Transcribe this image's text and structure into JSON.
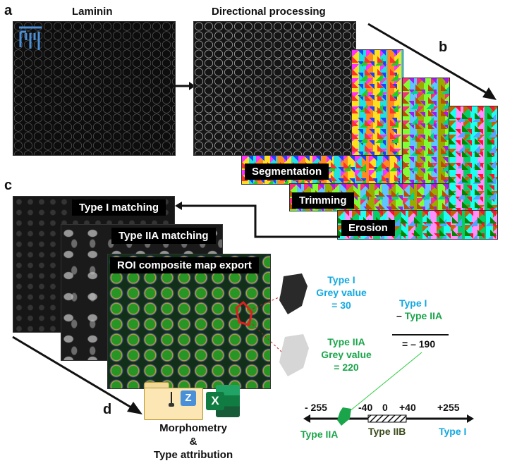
{
  "panels": {
    "a": "a",
    "b": "b",
    "c": "c",
    "d": "d"
  },
  "titles": {
    "laminin": "Laminin",
    "directional": "Directional processing"
  },
  "steps": {
    "segmentation": "Segmentation",
    "trimming": "Trimming",
    "erosion": "Erosion"
  },
  "matching": {
    "type1": "Type I matching",
    "type2a": "Type IIA matching",
    "roi": "ROI composite map export"
  },
  "grey_values": {
    "type1_name": "Type I",
    "type1_label": "Grey value",
    "type1_value": "= 30",
    "type2a_name": "Type IIA",
    "type2a_label": "Grey value",
    "type2a_value": "= 220"
  },
  "equation": {
    "line1": "Type I",
    "line2_minus": "– ",
    "line2": "Type IIA",
    "result": "= – 190"
  },
  "scale": {
    "ticks": [
      "- 255",
      "-40",
      "0",
      "+40",
      "+255"
    ],
    "labels": {
      "left": "Type IIA",
      "middle": "Type IIB",
      "right": "Type I"
    }
  },
  "export": {
    "line1": "Morphometry",
    "line2": "&",
    "line3": "Type attribution",
    "excel_letter": "X",
    "fiji_letter": "Z"
  },
  "colors": {
    "cyan": "#12a8e0",
    "green": "#1aa54a",
    "olive": "#3a4a1a",
    "roi_red": "#e02020",
    "fiji_blue": "#4a90d9"
  }
}
